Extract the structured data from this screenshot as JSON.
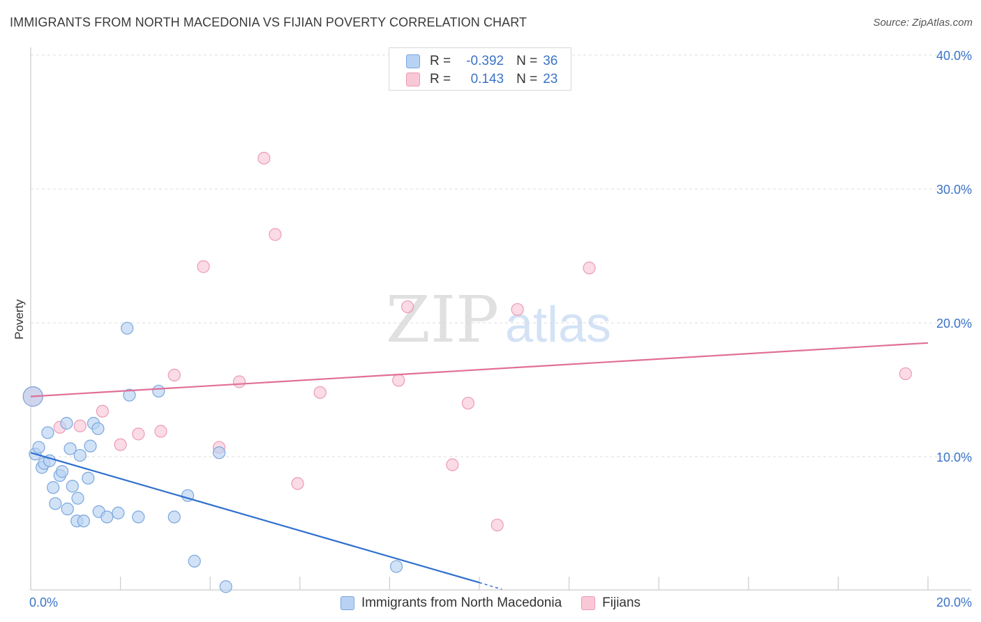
{
  "title": "IMMIGRANTS FROM NORTH MACEDONIA VS FIJIAN POVERTY CORRELATION CHART",
  "source": "Source: ZipAtlas.com",
  "watermark": {
    "zip": "ZIP",
    "atlas": "atlas"
  },
  "colors": {
    "blue_fill": "#b8d2f3",
    "blue_stroke": "#7aa6dc",
    "blue_line": "#2e6fce",
    "pink_fill": "#f9c8d7",
    "pink_stroke": "#ec9bb5",
    "pink_line": "#e06f97",
    "axis_text": "#3b73c8",
    "grid": "#dddddd"
  },
  "stats": {
    "rows": [
      {
        "r_label": "R =",
        "r_value": "-0.392",
        "n_label": "N =",
        "n_value": "36",
        "series": "blue"
      },
      {
        "r_label": "R =",
        "r_value": "0.143",
        "n_label": "N =",
        "n_value": "23",
        "series": "pink"
      }
    ]
  },
  "legend": [
    {
      "label": "Immigrants from North Macedonia",
      "series": "blue"
    },
    {
      "label": "Fijians",
      "series": "pink"
    }
  ],
  "chart_data": {
    "type": "scatter",
    "title": "IMMIGRANTS FROM NORTH MACEDONIA VS FIJIAN POVERTY CORRELATION CHART",
    "xlabel": "",
    "ylabel": "Poverty",
    "xlim": [
      0,
      20
    ],
    "ylim": [
      0,
      40
    ],
    "x_tick_labels": [
      {
        "value": 0,
        "label": "0.0%"
      },
      {
        "value": 20,
        "label": "20.0%"
      }
    ],
    "y_tick_labels": [
      {
        "value": 10,
        "label": "10.0%"
      },
      {
        "value": 20,
        "label": "20.0%"
      },
      {
        "value": 30,
        "label": "30.0%"
      },
      {
        "value": 40,
        "label": "40.0%"
      }
    ],
    "y_grid": [
      10,
      20,
      30,
      40
    ],
    "series": [
      {
        "name": "Immigrants from North Macedonia",
        "color": "blue",
        "R": -0.392,
        "N": 36,
        "points": [
          [
            0.05,
            14.5
          ],
          [
            0.1,
            10.2
          ],
          [
            0.18,
            10.7
          ],
          [
            0.25,
            9.2
          ],
          [
            0.3,
            9.5
          ],
          [
            0.38,
            11.8
          ],
          [
            0.42,
            9.7
          ],
          [
            0.5,
            7.7
          ],
          [
            0.55,
            6.5
          ],
          [
            0.65,
            8.6
          ],
          [
            0.7,
            8.9
          ],
          [
            0.8,
            12.5
          ],
          [
            0.82,
            6.1
          ],
          [
            0.88,
            10.6
          ],
          [
            0.93,
            7.8
          ],
          [
            1.03,
            5.2
          ],
          [
            1.05,
            6.9
          ],
          [
            1.1,
            10.1
          ],
          [
            1.18,
            5.2
          ],
          [
            1.28,
            8.4
          ],
          [
            1.33,
            10.8
          ],
          [
            1.4,
            12.5
          ],
          [
            1.5,
            12.1
          ],
          [
            1.52,
            5.9
          ],
          [
            1.7,
            5.5
          ],
          [
            1.95,
            5.8
          ],
          [
            2.15,
            19.6
          ],
          [
            2.2,
            14.6
          ],
          [
            2.4,
            5.5
          ],
          [
            2.85,
            14.9
          ],
          [
            3.2,
            5.5
          ],
          [
            3.5,
            7.1
          ],
          [
            3.65,
            2.2
          ],
          [
            4.2,
            10.3
          ],
          [
            4.35,
            0.3
          ],
          [
            8.15,
            1.8
          ]
        ],
        "trend": {
          "x0": 0,
          "y0": 10.3,
          "x1": 10.0,
          "y1": 0.6,
          "dash_x1": 10.5,
          "dash_y1": 0.1
        }
      },
      {
        "name": "Fijians",
        "color": "pink",
        "R": 0.143,
        "N": 23,
        "points": [
          [
            0.05,
            14.5
          ],
          [
            0.65,
            12.2
          ],
          [
            1.1,
            12.3
          ],
          [
            1.6,
            13.4
          ],
          [
            2.0,
            10.9
          ],
          [
            2.4,
            11.7
          ],
          [
            2.9,
            11.9
          ],
          [
            3.2,
            16.1
          ],
          [
            3.85,
            24.2
          ],
          [
            4.2,
            10.7
          ],
          [
            4.65,
            15.6
          ],
          [
            5.2,
            32.3
          ],
          [
            5.45,
            26.6
          ],
          [
            5.95,
            8.0
          ],
          [
            6.45,
            14.8
          ],
          [
            8.2,
            15.7
          ],
          [
            8.4,
            21.2
          ],
          [
            9.4,
            9.4
          ],
          [
            9.75,
            14.0
          ],
          [
            10.4,
            4.9
          ],
          [
            10.85,
            21.0
          ],
          [
            12.45,
            24.1
          ],
          [
            19.5,
            16.2
          ]
        ],
        "trend": {
          "x0": 0,
          "y0": 14.5,
          "x1": 20,
          "y1": 18.5
        }
      }
    ]
  }
}
